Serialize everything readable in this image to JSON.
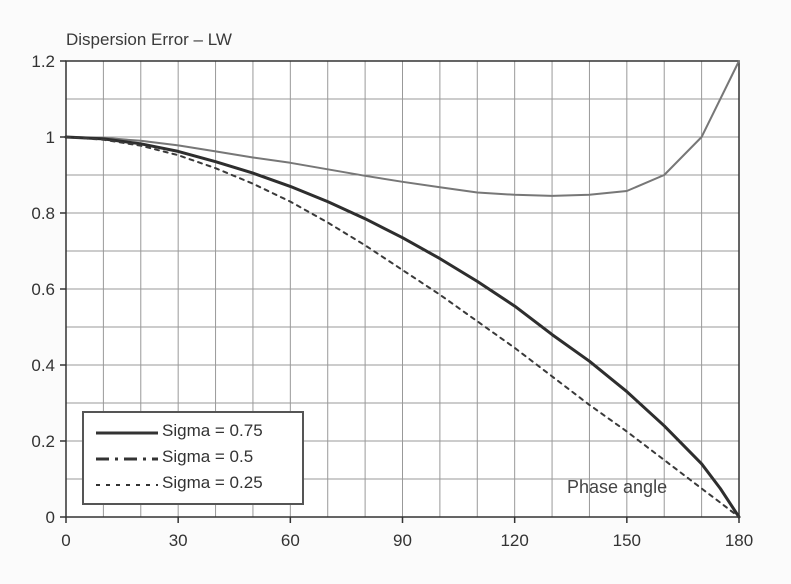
{
  "chart_data": {
    "type": "line",
    "title": "Dispersion Error – LW",
    "xlabel": "",
    "ylabel": "",
    "annotation": "Phase angle",
    "xlim": [
      0,
      180
    ],
    "ylim": [
      0,
      1.2
    ],
    "x_ticks": [
      "0",
      "30",
      "60",
      "90",
      "120",
      "150",
      "180"
    ],
    "y_ticks": [
      "0",
      "0.2",
      "0.4",
      "0.6",
      "0.8",
      "1",
      "1.2"
    ],
    "grid": true,
    "legend_position": "bottom-left",
    "x": [
      0,
      10,
      20,
      30,
      40,
      50,
      60,
      70,
      80,
      90,
      100,
      110,
      120,
      130,
      140,
      150,
      160,
      170,
      175,
      180
    ],
    "series": [
      {
        "name": "Sigma = 0.75",
        "values": [
          1.0,
          0.998,
          0.99,
          0.978,
          0.962,
          0.946,
          0.932,
          0.915,
          0.898,
          0.882,
          0.868,
          0.854,
          0.848,
          0.845,
          0.848,
          0.858,
          0.9,
          1.0,
          1.1,
          1.2
        ]
      },
      {
        "name": "Sigma = 0.5",
        "values": [
          1.0,
          0.995,
          0.982,
          0.962,
          0.935,
          0.905,
          0.87,
          0.83,
          0.785,
          0.735,
          0.68,
          0.62,
          0.555,
          0.48,
          0.41,
          0.33,
          0.24,
          0.14,
          0.075,
          0.0
        ]
      },
      {
        "name": "Sigma = 0.25",
        "values": [
          1.0,
          0.993,
          0.977,
          0.952,
          0.918,
          0.877,
          0.83,
          0.775,
          0.715,
          0.65,
          0.585,
          0.515,
          0.445,
          0.37,
          0.295,
          0.225,
          0.15,
          0.075,
          0.038,
          0.0
        ]
      }
    ],
    "colors": {
      "sigma_075": "#777777",
      "sigma_05": "#2e2e2e",
      "sigma_025": "#3a3a3a",
      "grid": "#999999",
      "axis": "#333333"
    }
  }
}
